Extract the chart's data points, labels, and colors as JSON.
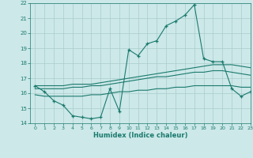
{
  "xlabel": "Humidex (Indice chaleur)",
  "x": [
    0,
    1,
    2,
    3,
    4,
    5,
    6,
    7,
    8,
    9,
    10,
    11,
    12,
    13,
    14,
    15,
    16,
    17,
    18,
    19,
    20,
    21,
    22,
    23
  ],
  "y_main": [
    16.5,
    16.1,
    15.5,
    15.2,
    14.5,
    14.4,
    14.3,
    14.4,
    16.3,
    14.8,
    18.9,
    18.5,
    19.3,
    19.5,
    20.5,
    20.8,
    21.2,
    21.9,
    18.3,
    18.1,
    18.1,
    16.3,
    15.8,
    16.1
  ],
  "y_upper": [
    16.5,
    16.5,
    16.5,
    16.5,
    16.6,
    16.6,
    16.6,
    16.7,
    16.8,
    16.9,
    17.0,
    17.1,
    17.2,
    17.3,
    17.4,
    17.5,
    17.6,
    17.7,
    17.8,
    17.9,
    17.9,
    17.9,
    17.8,
    17.7
  ],
  "y_mid": [
    16.3,
    16.3,
    16.3,
    16.3,
    16.4,
    16.4,
    16.5,
    16.5,
    16.6,
    16.7,
    16.8,
    16.9,
    17.0,
    17.1,
    17.1,
    17.2,
    17.3,
    17.4,
    17.4,
    17.5,
    17.5,
    17.4,
    17.3,
    17.2
  ],
  "y_lower": [
    15.9,
    15.8,
    15.8,
    15.8,
    15.8,
    15.8,
    15.9,
    15.9,
    16.0,
    16.1,
    16.1,
    16.2,
    16.2,
    16.3,
    16.3,
    16.4,
    16.4,
    16.5,
    16.5,
    16.5,
    16.5,
    16.5,
    16.4,
    16.4
  ],
  "line_color": "#1a7a6e",
  "bg_color": "#cce8e8",
  "grid_color": "#aacccc",
  "ylim": [
    14,
    22
  ],
  "xlim": [
    -0.5,
    23
  ],
  "yticks": [
    14,
    15,
    16,
    17,
    18,
    19,
    20,
    21,
    22
  ],
  "xticks": [
    0,
    1,
    2,
    3,
    4,
    5,
    6,
    7,
    8,
    9,
    10,
    11,
    12,
    13,
    14,
    15,
    16,
    17,
    18,
    19,
    20,
    21,
    22,
    23
  ]
}
